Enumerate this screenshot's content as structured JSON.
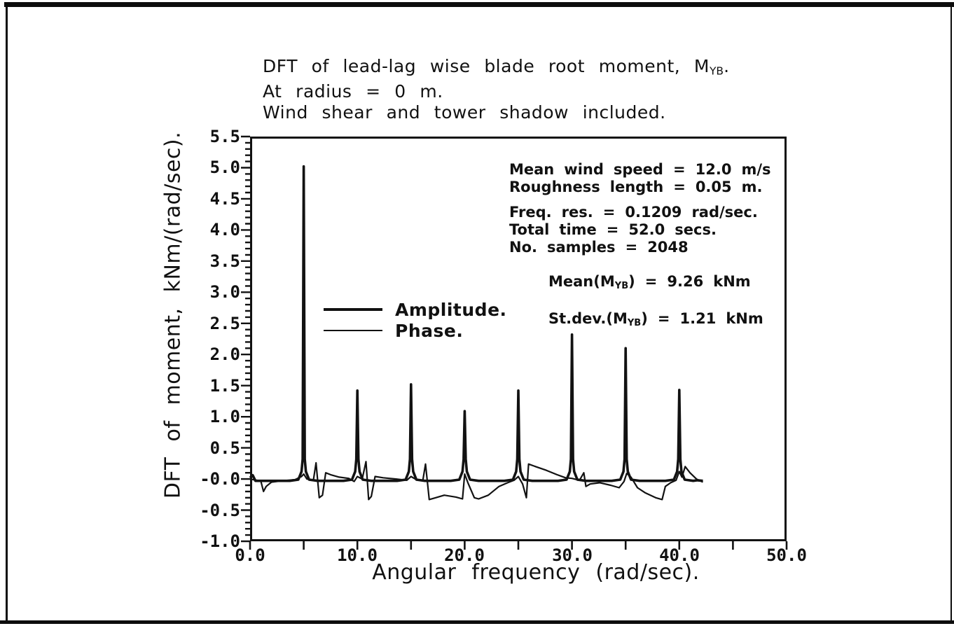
{
  "title": {
    "l1_pre": "DFT of lead-lag wise blade root moment, M",
    "l1_sub": "YB",
    "l1_post": ".",
    "l2": "At radius = 0 m.",
    "l3": "Wind shear and tower shadow included."
  },
  "chart_data": {
    "type": "line",
    "title_lines": [
      "DFT of lead-lag wise blade root moment, M_YB.",
      "At radius = 0 m.",
      "Wind shear and tower shadow included."
    ],
    "xlabel": "Angular frequency (rad/sec).",
    "ylabel": "DFT of moment, kNm/(rad/sec).",
    "xlim": [
      0,
      50
    ],
    "ylim": [
      -1.0,
      5.5
    ],
    "x_major_tick": 5,
    "y_major_tick": 0.5,
    "y_minor_tick": 0.1,
    "x_tick_labels": [
      "0.0",
      "10.0",
      "20.0",
      "30.0",
      "40.0",
      "50.0"
    ],
    "y_tick_labels": [
      "5.5",
      "5.0",
      "4.5",
      "4.0",
      "3.5",
      "3.0",
      "2.5",
      "2.0",
      "1.5",
      "1.0",
      "0.5",
      "-0.0",
      "-0.5",
      "-1.0"
    ],
    "grid": false,
    "legend": {
      "position": "inside-left",
      "entries": [
        {
          "label": "Amplitude.",
          "style": "thick-line"
        },
        {
          "label": "Phase.",
          "style": "thin-line"
        }
      ]
    },
    "series": [
      {
        "name": "Amplitude",
        "type": "spectral-peaks",
        "baseline": -0.03,
        "x_end": 42.2,
        "peaks": [
          [
            5.0,
            5.02
          ],
          [
            10.0,
            1.42
          ],
          [
            15.0,
            1.52
          ],
          [
            20.0,
            1.09
          ],
          [
            25.0,
            1.42
          ],
          [
            30.0,
            2.32
          ],
          [
            35.0,
            2.1
          ],
          [
            40.0,
            1.43
          ]
        ]
      },
      {
        "name": "Phase",
        "type": "polyline",
        "points": [
          [
            0,
            0.0
          ],
          [
            0.6,
            -0.02
          ],
          [
            1.0,
            -0.03
          ],
          [
            1.25,
            -0.2
          ],
          [
            1.5,
            -0.12
          ],
          [
            2.0,
            -0.05
          ],
          [
            3.0,
            -0.03
          ],
          [
            4.2,
            -0.01
          ],
          [
            4.8,
            0.04
          ],
          [
            5.0,
            0.08
          ],
          [
            5.3,
            0.0
          ],
          [
            5.9,
            -0.02
          ],
          [
            6.15,
            0.26
          ],
          [
            6.45,
            -0.3
          ],
          [
            6.75,
            -0.26
          ],
          [
            7.05,
            0.1
          ],
          [
            7.5,
            0.07
          ],
          [
            8.3,
            0.03
          ],
          [
            9.2,
            0.01
          ],
          [
            9.7,
            -0.04
          ],
          [
            10.0,
            0.04
          ],
          [
            10.45,
            0.0
          ],
          [
            10.8,
            0.28
          ],
          [
            11.05,
            -0.33
          ],
          [
            11.3,
            -0.28
          ],
          [
            11.65,
            0.04
          ],
          [
            12.4,
            0.02
          ],
          [
            13.6,
            0.0
          ],
          [
            14.6,
            -0.02
          ],
          [
            15.0,
            0.04
          ],
          [
            15.5,
            -0.01
          ],
          [
            16.1,
            -0.02
          ],
          [
            16.35,
            0.24
          ],
          [
            16.7,
            -0.33
          ],
          [
            17.3,
            -0.3
          ],
          [
            18.1,
            -0.26
          ],
          [
            19.2,
            -0.29
          ],
          [
            19.8,
            -0.32
          ],
          [
            20.0,
            0.08
          ],
          [
            20.3,
            -0.06
          ],
          [
            20.9,
            -0.3
          ],
          [
            21.3,
            -0.32
          ],
          [
            22.2,
            -0.26
          ],
          [
            23.2,
            -0.12
          ],
          [
            24.0,
            -0.06
          ],
          [
            24.6,
            -0.02
          ],
          [
            25.0,
            0.04
          ],
          [
            25.4,
            -0.08
          ],
          [
            25.75,
            -0.3
          ],
          [
            25.95,
            0.24
          ],
          [
            26.6,
            0.2
          ],
          [
            27.6,
            0.14
          ],
          [
            28.6,
            0.07
          ],
          [
            29.4,
            0.02
          ],
          [
            30.0,
            0.01
          ],
          [
            30.7,
            -0.02
          ],
          [
            31.1,
            0.1
          ],
          [
            31.3,
            -0.12
          ],
          [
            31.7,
            -0.08
          ],
          [
            32.6,
            -0.06
          ],
          [
            33.6,
            -0.1
          ],
          [
            34.4,
            -0.14
          ],
          [
            34.85,
            -0.04
          ],
          [
            35.1,
            0.09
          ],
          [
            35.5,
            0.03
          ],
          [
            36.1,
            -0.14
          ],
          [
            36.8,
            -0.22
          ],
          [
            37.8,
            -0.3
          ],
          [
            38.4,
            -0.33
          ],
          [
            38.7,
            -0.12
          ],
          [
            39.2,
            -0.06
          ],
          [
            39.7,
            -0.02
          ],
          [
            40.0,
            0.12
          ],
          [
            40.25,
            0.03
          ],
          [
            40.55,
            0.2
          ],
          [
            41.0,
            0.1
          ],
          [
            41.6,
            0.0
          ],
          [
            42.2,
            -0.05
          ]
        ]
      }
    ],
    "annotations": {
      "wind": [
        "Mean wind speed = 12.0 m/s",
        "Roughness length = 0.05 m."
      ],
      "dft": [
        "Freq. res. = 0.1209 rad/sec.",
        "Total time = 52.0 secs.",
        "No. samples = 2048"
      ],
      "stats": {
        "mean_prefix": "Mean(M",
        "mean_sub": "YB",
        "mean_suffix": ") = 9.26 kNm",
        "stdev_prefix": "St.dev.(M",
        "stdev_sub": "YB",
        "stdev_suffix": ") = 1.21 kNm"
      }
    }
  }
}
